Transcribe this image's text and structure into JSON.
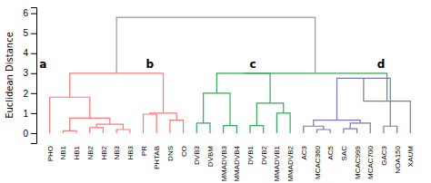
{
  "chart_data": {
    "type": "dendrogram",
    "y_label": "Euclidean Distance",
    "categories": [
      "PHO",
      "NB1",
      "HB1",
      "NB2",
      "HB2",
      "NB3",
      "HB3",
      "PR",
      "PHTAB",
      "DNS",
      "CO",
      "DVB3",
      "DVBM",
      "MMADVB3",
      "MMADVB4",
      "DVB1",
      "DVB2",
      "MMADVB1",
      "MMADVB2",
      "AC3",
      "MCAC360",
      "AC5",
      "SAC",
      "MCAC999",
      "MCAC700",
      "GAC3",
      "NOA150",
      "XAUM"
    ],
    "ylim": [
      -0.5,
      6.3
    ],
    "yticks": [
      0,
      1,
      2,
      3,
      4,
      5,
      6
    ],
    "grid": false,
    "merges": [
      {
        "left": "NB1",
        "right": "HB1",
        "height": 0.12,
        "color": "#FF7777"
      },
      {
        "left": "NB2",
        "right": "HB2",
        "height": 0.28,
        "color": "#FF7777"
      },
      {
        "left": "NB3",
        "right": "HB3",
        "height": 0.18,
        "color": "#FF7777"
      },
      {
        "left": 1,
        "right": 2,
        "height": 0.45,
        "color": "#FF7777"
      },
      {
        "left": 0,
        "right": 3,
        "height": 0.75,
        "color": "#FF7777"
      },
      {
        "left": "PHO",
        "right": 4,
        "height": 1.8,
        "color": "#FF7777"
      },
      {
        "left": "DNS",
        "right": "CO",
        "height": 0.65,
        "color": "#FF7777"
      },
      {
        "left": "PR",
        "right": "PHTAB",
        "height": 0.95,
        "color": "#FF7777"
      },
      {
        "left": 7,
        "right": 6,
        "height": 1.0,
        "color": "#FF7777"
      },
      {
        "left": 5,
        "right": 8,
        "height": 3.0,
        "color": "#FF7777"
      },
      {
        "left": "DVB3",
        "right": "DVBM",
        "height": 0.5,
        "color": "#33AA55"
      },
      {
        "left": "MMADVB3",
        "right": "MMADVB4",
        "height": 0.38,
        "color": "#33AA55"
      },
      {
        "left": 10,
        "right": 11,
        "height": 2.0,
        "color": "#33AA55"
      },
      {
        "left": "DVB1",
        "right": "DVB2",
        "height": 0.38,
        "color": "#33AA55"
      },
      {
        "left": "MMADVB1",
        "right": "MMADVB2",
        "height": 1.0,
        "color": "#33AA55"
      },
      {
        "left": 13,
        "right": 14,
        "height": 1.5,
        "color": "#33AA55"
      },
      {
        "left": 12,
        "right": 15,
        "height": 3.0,
        "color": "#33AA55"
      },
      {
        "left": "MCAC360",
        "right": "AC5",
        "height": 0.18,
        "color": "#7777BB"
      },
      {
        "left": "AC3",
        "right": 17,
        "height": 0.35,
        "color": "#7777BB"
      },
      {
        "left": "SAC",
        "right": "MCAC999",
        "height": 0.22,
        "color": "#7777BB"
      },
      {
        "left": 19,
        "right": "MCAC700",
        "height": 0.5,
        "color": "#7777BB"
      },
      {
        "left": 18,
        "right": 20,
        "height": 0.65,
        "color": "#7777BB"
      },
      {
        "left": "GAC3",
        "right": "NOA150",
        "height": 0.35,
        "color": "#7777BB"
      },
      {
        "left": 21,
        "right": 22,
        "height": 2.75,
        "color": "#7777BB"
      },
      {
        "left": 23,
        "right": "XAUM",
        "height": 1.6,
        "color": "#7777BB"
      },
      {
        "left": 16,
        "right": 24,
        "height": 3.0,
        "color": "#33AA55"
      },
      {
        "left": 9,
        "right": 25,
        "height": 5.8,
        "color": "#999999"
      }
    ],
    "annotations": [
      {
        "text": "a",
        "x": -0.5,
        "y": 3.15
      },
      {
        "text": "b",
        "x": 7.5,
        "y": 3.15
      },
      {
        "text": "c",
        "x": 15.2,
        "y": 3.15
      },
      {
        "text": "d",
        "x": 24.8,
        "y": 3.15
      }
    ]
  }
}
